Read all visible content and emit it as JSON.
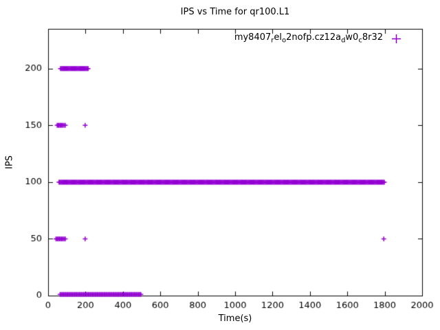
{
  "chart_data": {
    "type": "scatter",
    "title": "IPS vs Time for qr100.L1",
    "xlabel": "Time(s)",
    "ylabel": "IPS",
    "xlim": [
      0,
      2000
    ],
    "ylim": [
      0,
      235
    ],
    "xticks": [
      0,
      200,
      400,
      600,
      800,
      1000,
      1200,
      1400,
      1600,
      1800,
      2000
    ],
    "yticks": [
      0,
      50,
      100,
      150,
      200
    ],
    "grid": false,
    "legend_position": "top-right-inside",
    "background_color": "#ffffff",
    "axis_color": "#000000",
    "series": [
      {
        "name": "my8407_rel_o2nofp.cz12a_dw0_c8r32",
        "label_segments": [
          {
            "t": "my8407",
            "sub": false
          },
          {
            "t": "r",
            "sub": true
          },
          {
            "t": "el",
            "sub": false
          },
          {
            "t": "o",
            "sub": true
          },
          {
            "t": "2nofp.cz12a",
            "sub": false
          },
          {
            "t": "d",
            "sub": true
          },
          {
            "t": "w0",
            "sub": false
          },
          {
            "t": "c",
            "sub": true
          },
          {
            "t": "8r32",
            "sub": false
          }
        ],
        "marker": "plus",
        "color": "#9400D3",
        "runs": [
          {
            "y": 100,
            "x0": 58,
            "x1": 1800,
            "step": 4
          },
          {
            "y": 200,
            "x0": 66,
            "x1": 214,
            "step": 4
          },
          {
            "y": 1,
            "x0": 64,
            "x1": 500,
            "step": 6
          }
        ],
        "points": [
          [
            48,
            150
          ],
          [
            53,
            150
          ],
          [
            58,
            150
          ],
          [
            63,
            150
          ],
          [
            68,
            150
          ],
          [
            73,
            150
          ],
          [
            78,
            150
          ],
          [
            85,
            150
          ],
          [
            92,
            150
          ],
          [
            198,
            150
          ],
          [
            42,
            50
          ],
          [
            48,
            50
          ],
          [
            54,
            50
          ],
          [
            60,
            50
          ],
          [
            66,
            50
          ],
          [
            72,
            50
          ],
          [
            78,
            50
          ],
          [
            85,
            50
          ],
          [
            92,
            50
          ],
          [
            198,
            50
          ],
          [
            1795,
            50
          ]
        ]
      }
    ]
  }
}
